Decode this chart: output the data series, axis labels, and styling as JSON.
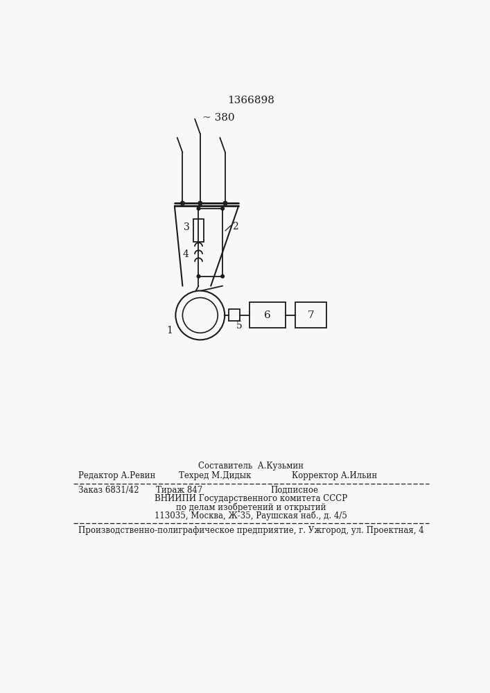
{
  "title": "1366898",
  "title_fontsize": 11,
  "background_color": "#f8f8f6",
  "line_color": "#1a1a1a",
  "text_color": "#1a1a1a",
  "footer_sestavitel": "Составитель  А.Кузьмин",
  "footer_redaktor": "Редактор А.Ревин",
  "footer_tehred": "Техред М.Дидык",
  "footer_korrektor": "Корректор А.Ильин",
  "footer_zakaz": "Заказ 6831/42",
  "footer_tirazh": "Тираж 847",
  "footer_podpisnoe": "Подписное",
  "footer_vniipи": "ВНИИПИ Государственного комитета СССР",
  "footer_podel": "по делам изобретений и открытий",
  "footer_addr": "113035, Москва, Ж-35, Раушская наб., д. 4/5",
  "footer_proizv": "Производственно-полиграфическое предприятие, г. Ужгород, ул. Проектная, 4",
  "voltage_label": "~ 380",
  "label1": "1",
  "label2": "2",
  "label3": "3",
  "label4": "4",
  "label5": "5",
  "label6": "6",
  "label7": "7"
}
